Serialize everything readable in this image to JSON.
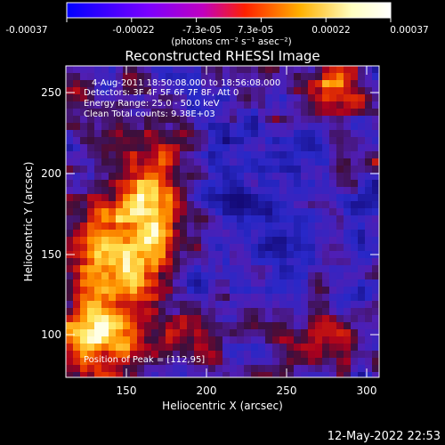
{
  "colorbar": {
    "ticks": [
      "-0.00037",
      "-0.00022",
      "-7.3e-05",
      "7.3e-05",
      "0.00022",
      "0.00037"
    ],
    "unit_label": "(photons cm⁻² s⁻¹ asec⁻²)",
    "gradient": [
      "#0000ff",
      "#7a00ff",
      "#c000c0",
      "#ff2000",
      "#ffb000",
      "#ffffc0",
      "#ffffff"
    ]
  },
  "image": {
    "title": "Reconstructed RHESSI Image",
    "info_lines": [
      "4-Aug-2011 18:50:08.000 to 18:56:08.000",
      "Detectors: 3F 4F 5F 6F 7F 8F, Att 0",
      "Energy Range: 25.0 - 50.0 keV",
      "Clean     Total counts: 9.38E+03"
    ],
    "peak_label": "Position of Peak = [112,95]",
    "x_axis": {
      "label": "Heliocentric X (arcsec)",
      "ticks": [
        "150",
        "200",
        "250",
        "300"
      ]
    },
    "y_axis": {
      "label": "Heliocentric Y (arcsec)",
      "ticks": [
        "100",
        "150",
        "200",
        "250"
      ]
    }
  },
  "footer": {
    "timestamp": "12-May-2022 22:53"
  }
}
